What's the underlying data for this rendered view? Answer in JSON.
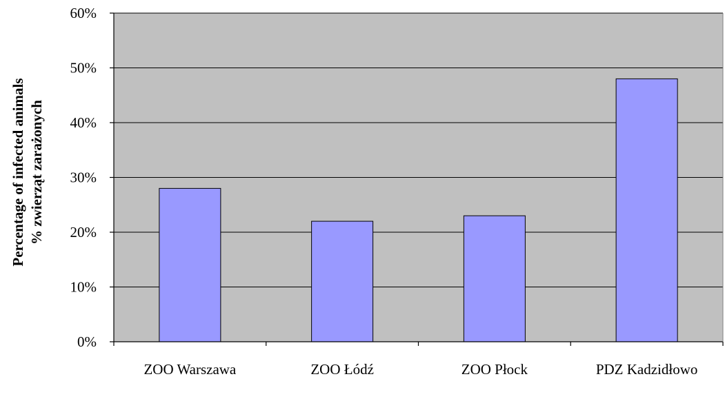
{
  "colors": {
    "plot_background": "#c0c0c0",
    "bar_fill": "#9999ff",
    "bar_stroke": "#000000",
    "gridline": "#000000"
  },
  "chart_data": {
    "type": "bar",
    "categories": [
      "ZOO Warszawa",
      "ZOO Łódź",
      "ZOO Płock",
      "PDZ Kadzidłowo"
    ],
    "values": [
      28,
      22,
      23,
      48
    ],
    "title": "",
    "xlabel": "",
    "ylabel_lines": [
      "Percentage of infected animals",
      "% zwierząt zarażonych"
    ],
    "ylim": [
      0,
      60
    ],
    "yticks": [
      0,
      10,
      20,
      30,
      40,
      50,
      60
    ],
    "ytick_labels": [
      "0%",
      "10%",
      "20%",
      "30%",
      "40%",
      "50%",
      "60%"
    ],
    "grid": true,
    "legend": "none"
  }
}
